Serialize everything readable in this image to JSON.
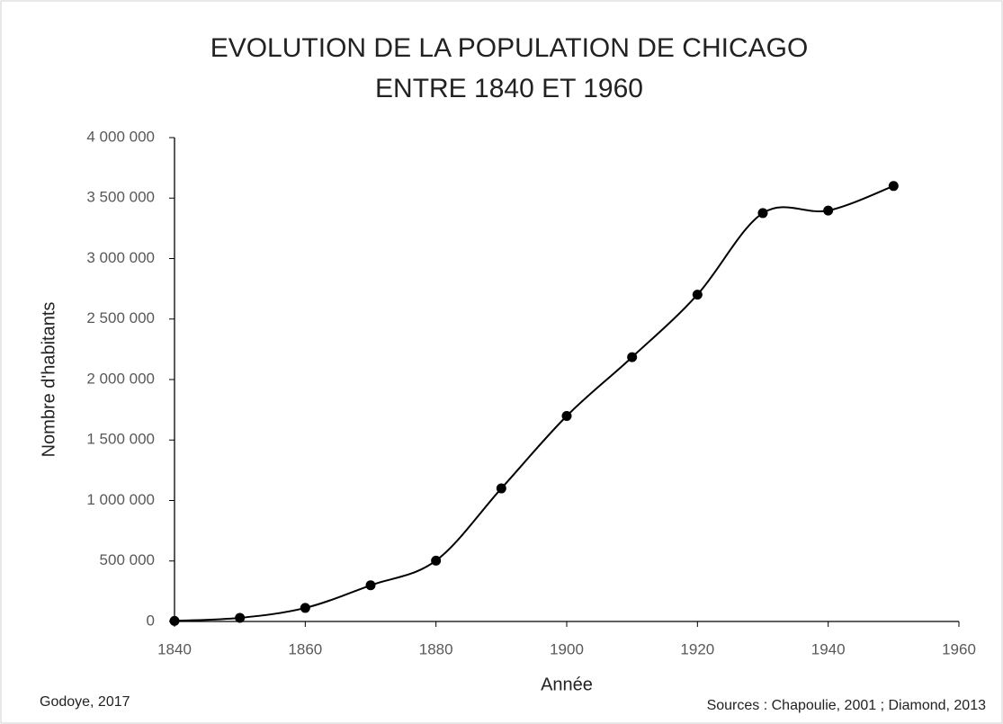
{
  "chart_data": {
    "type": "line",
    "title": [
      "EVOLUTION DE LA POPULATION DE CHICAGO",
      "ENTRE 1840 ET 1960"
    ],
    "x_label": "Année",
    "y_label": "Nombre d'habitants",
    "annotations": [
      "Godoye, 2017",
      "Sources : Chapoulie, 2001 ; Diamond, 2013"
    ],
    "x": [
      1840,
      1850,
      1860,
      1870,
      1880,
      1890,
      1900,
      1910,
      1920,
      1930,
      1940,
      1950
    ],
    "series": [
      {
        "name": "Population",
        "color": "#000000",
        "values": [
          4470,
          30000,
          112000,
          299000,
          503000,
          1100000,
          1699000,
          2185000,
          2702000,
          3376000,
          3397000,
          3600000
        ]
      }
    ],
    "xlim": [
      1840,
      1960
    ],
    "xticks": [
      1840,
      1860,
      1880,
      1900,
      1920,
      1940,
      1960
    ],
    "ylim": [
      0,
      4000000
    ],
    "yticks": [
      {
        "value": 0,
        "label": "0"
      },
      {
        "value": 500000,
        "label": "500 000"
      },
      {
        "value": 1000000,
        "label": "1 000 000"
      },
      {
        "value": 1500000,
        "label": "1 500 000"
      },
      {
        "value": 2000000,
        "label": "2 000 000"
      },
      {
        "value": 2500000,
        "label": "2 500 000"
      },
      {
        "value": 3000000,
        "label": "3 000 000"
      },
      {
        "value": 3500000,
        "label": "3 500 000"
      },
      {
        "value": 4000000,
        "label": "4 000 000"
      }
    ],
    "smooth": true,
    "grid": false
  }
}
